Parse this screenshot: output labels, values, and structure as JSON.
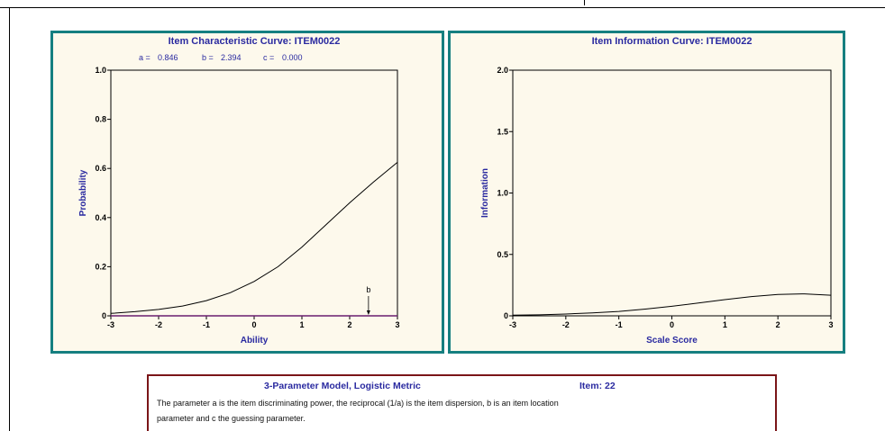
{
  "chart_data": [
    {
      "type": "line",
      "title": "Item Characteristic Curve: ITEM0022",
      "params": [
        {
          "label": "a =",
          "value": "0.846"
        },
        {
          "label": "b =",
          "value": "2.394"
        },
        {
          "label": "c =",
          "value": "0.000"
        }
      ],
      "xlabel": "Ability",
      "ylabel": "Probability",
      "xlim": [
        -3,
        3
      ],
      "ylim": [
        0,
        1
      ],
      "xticks": [
        "-3",
        "-2",
        "-1",
        "0",
        "1",
        "2",
        "3"
      ],
      "yticks": [
        "0",
        "0.2",
        "0.4",
        "0.6",
        "0.8",
        "1.0"
      ],
      "series": [
        {
          "x": [
            -3,
            -2.5,
            -2,
            -1.5,
            -1,
            -0.5,
            0,
            0.5,
            1,
            1.5,
            2,
            2.5,
            3
          ],
          "values": [
            0.01,
            0.017,
            0.026,
            0.04,
            0.062,
            0.094,
            0.14,
            0.2,
            0.28,
            0.37,
            0.46,
            0.545,
            0.625
          ]
        }
      ],
      "annotation": {
        "label": "b",
        "x": 2.394
      },
      "grid": false
    },
    {
      "type": "line",
      "title": "Item Information Curve: ITEM0022",
      "xlabel": "Scale Score",
      "ylabel": "Information",
      "xlim": [
        -3,
        3
      ],
      "ylim": [
        0,
        2
      ],
      "xticks": [
        "-3",
        "-2",
        "-1",
        "0",
        "1",
        "2",
        "3"
      ],
      "yticks": [
        "0",
        "0.5",
        "1.0",
        "1.5",
        "2.0"
      ],
      "series": [
        {
          "x": [
            -3,
            -2.5,
            -2,
            -1.5,
            -1,
            -0.5,
            0,
            0.5,
            1,
            1.5,
            2,
            2.5,
            3
          ],
          "values": [
            0.005,
            0.008,
            0.015,
            0.024,
            0.036,
            0.055,
            0.078,
            0.104,
            0.132,
            0.157,
            0.174,
            0.179,
            0.168
          ]
        }
      ],
      "grid": false
    }
  ],
  "info": {
    "title": "3-Parameter Model, Logistic Metric",
    "item": "Item: 22",
    "description": "The parameter a is the item discriminating power, the reciprocal (1/a) is the item dispersion, b is an item location parameter and c the guessing parameter."
  },
  "colors": {
    "panel_border": "#157f80",
    "panel_bg": "#fdf9ec",
    "text_blue": "#2a2aa0",
    "info_border": "#7a1518",
    "baseline": "#6a1d6e"
  }
}
